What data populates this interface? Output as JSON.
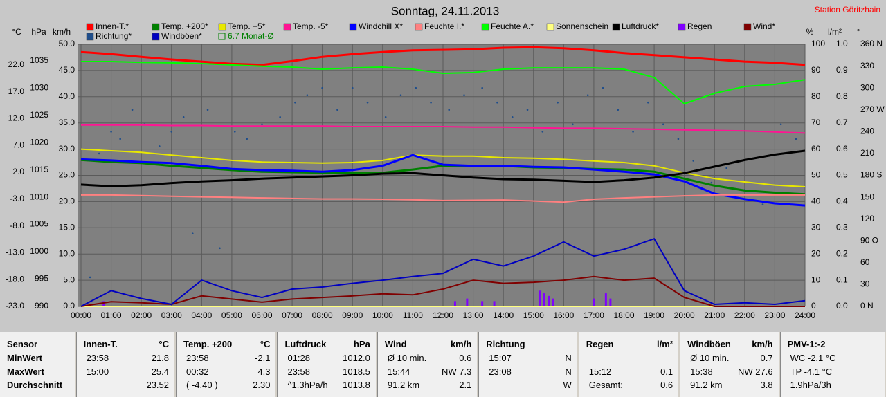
{
  "chart_data": {
    "type": "line",
    "title": "Sonntag, 24.11.2013",
    "station": "Station Göritzhain",
    "x": [
      0,
      1,
      2,
      3,
      4,
      5,
      6,
      7,
      8,
      9,
      10,
      11,
      12,
      13,
      14,
      15,
      16,
      17,
      18,
      19,
      20,
      21,
      22,
      23,
      24
    ],
    "xlim": [
      0,
      24
    ],
    "xticks": [
      {
        "value": 0,
        "label": "00:00"
      },
      {
        "value": 1,
        "label": "01:00"
      },
      {
        "value": 2,
        "label": "02:00"
      },
      {
        "value": 3,
        "label": "03:00"
      },
      {
        "value": 4,
        "label": "04:00"
      },
      {
        "value": 5,
        "label": "05:00"
      },
      {
        "value": 6,
        "label": "06:00"
      },
      {
        "value": 7,
        "label": "07:00"
      },
      {
        "value": 8,
        "label": "08:00"
      },
      {
        "value": 9,
        "label": "09:00"
      },
      {
        "value": 10,
        "label": "10:00"
      },
      {
        "value": 11,
        "label": "11:00"
      },
      {
        "value": 12,
        "label": "12:00"
      },
      {
        "value": 13,
        "label": "13:00"
      },
      {
        "value": 14,
        "label": "14:00"
      },
      {
        "value": 15,
        "label": "15:00"
      },
      {
        "value": 16,
        "label": "16:00"
      },
      {
        "value": 17,
        "label": "17:00"
      },
      {
        "value": 18,
        "label": "18:00"
      },
      {
        "value": 19,
        "label": "19:00"
      },
      {
        "value": 20,
        "label": "20:00"
      },
      {
        "value": 21,
        "label": "21:00"
      },
      {
        "value": 22,
        "label": "22:00"
      },
      {
        "value": 23,
        "label": "23:00"
      },
      {
        "value": 24,
        "label": "24:00"
      }
    ],
    "grid": true,
    "axes": [
      {
        "label": "°C",
        "side": "left",
        "lim": [
          -23,
          25.84
        ],
        "ticks": [
          {
            "value": 22,
            "label": "22.0"
          },
          {
            "value": 17,
            "label": "17.0"
          },
          {
            "value": 12,
            "label": "12.0"
          },
          {
            "value": 7,
            "label": "7.0"
          },
          {
            "value": 2,
            "label": "2.0"
          },
          {
            "value": -3,
            "label": "-3.0"
          },
          {
            "value": -8,
            "label": "-8.0"
          },
          {
            "value": -13,
            "label": "-13.0"
          },
          {
            "value": -18,
            "label": "-18.0"
          },
          {
            "value": -23,
            "label": "-23.0"
          }
        ]
      },
      {
        "label": "hPa",
        "side": "left",
        "lim": [
          990,
          1038
        ],
        "ticks": [
          1035,
          1030,
          1025,
          1020,
          1015,
          1010,
          1005,
          1000,
          995,
          990
        ]
      },
      {
        "label": "km/h",
        "side": "left",
        "lim": [
          0,
          50
        ],
        "ticks": [
          {
            "value": 50,
            "label": "50.0"
          },
          {
            "value": 45,
            "label": "45.0"
          },
          {
            "value": 40,
            "label": "40.0"
          },
          {
            "value": 35,
            "label": "35.0"
          },
          {
            "value": 30,
            "label": "30.0"
          },
          {
            "value": 25,
            "label": "25.0"
          },
          {
            "value": 20,
            "label": "20.0"
          },
          {
            "value": 15,
            "label": "15.0"
          },
          {
            "value": 10,
            "label": "10.0"
          },
          {
            "value": 5,
            "label": "5.0"
          },
          {
            "value": 0,
            "label": "0.0"
          }
        ]
      },
      {
        "label": "%",
        "side": "right",
        "lim": [
          0,
          100
        ],
        "ticks": [
          100,
          90,
          80,
          70,
          60,
          50,
          40,
          30,
          20,
          10,
          0
        ]
      },
      {
        "label": "l/m²",
        "side": "right",
        "lim": [
          0,
          1
        ],
        "ticks": [
          {
            "value": 1,
            "label": "1.0"
          },
          {
            "value": 0.9,
            "label": "0.9"
          },
          {
            "value": 0.8,
            "label": "0.8"
          },
          {
            "value": 0.7,
            "label": "0.7"
          },
          {
            "value": 0.6,
            "label": "0.6"
          },
          {
            "value": 0.5,
            "label": "0.5"
          },
          {
            "value": 0.4,
            "label": "0.4"
          },
          {
            "value": 0.3,
            "label": "0.3"
          },
          {
            "value": 0.2,
            "label": "0.2"
          },
          {
            "value": 0.1,
            "label": "0.1"
          },
          {
            "value": 0,
            "label": "0.0"
          }
        ]
      },
      {
        "label": "°",
        "side": "right",
        "lim": [
          0,
          360
        ],
        "ticks": [
          {
            "value": 360,
            "label": "360 N"
          },
          330,
          300,
          {
            "value": 270,
            "label": "270 W"
          },
          240,
          210,
          {
            "value": 180,
            "label": "180 S"
          },
          150,
          120,
          {
            "value": 90,
            "label": "90 O"
          },
          60,
          30,
          {
            "value": 0,
            "label": "0 N"
          }
        ]
      }
    ],
    "reference_line": {
      "label": "6.7 Monat-Ø",
      "value": 6.7,
      "axis": 0,
      "color": "#008000"
    },
    "series": [
      {
        "name": "Innen-T.*",
        "type": "line",
        "axis": 0,
        "color": "#ff0000",
        "width": 3,
        "values": [
          24.4,
          24.0,
          23.5,
          23.0,
          22.6,
          22.2,
          22.0,
          22.7,
          23.5,
          24.0,
          24.4,
          24.7,
          24.8,
          24.9,
          25.2,
          25.3,
          25.1,
          24.7,
          24.2,
          23.8,
          23.4,
          23.0,
          22.6,
          22.4,
          22.0
        ]
      },
      {
        "name": "Temp. +200*",
        "type": "line",
        "axis": 0,
        "color": "#008000",
        "width": 3,
        "values": [
          4.3,
          3.9,
          3.7,
          3.2,
          2.8,
          2.4,
          2.1,
          2.0,
          1.9,
          1.9,
          1.9,
          2.5,
          3.2,
          3.2,
          3.2,
          2.9,
          2.8,
          2.6,
          2.5,
          2.1,
          0.8,
          -0.5,
          -1.4,
          -1.8,
          -2.1
        ]
      },
      {
        "name": "Temp. +5*",
        "type": "line",
        "axis": 0,
        "color": "#e8e800",
        "width": 2,
        "values": [
          6.3,
          6.0,
          5.7,
          5.2,
          4.7,
          4.2,
          3.9,
          3.8,
          3.7,
          3.8,
          4.2,
          5.2,
          5.0,
          5.0,
          4.7,
          4.6,
          4.4,
          4.1,
          3.8,
          3.2,
          1.9,
          0.8,
          0.2,
          -0.4,
          -0.7
        ]
      },
      {
        "name": "Temp. -5*",
        "type": "line",
        "axis": 0,
        "color": "#ff1493",
        "width": 2,
        "values": [
          10.8,
          10.8,
          10.8,
          10.7,
          10.7,
          10.6,
          10.6,
          10.6,
          10.6,
          10.5,
          10.5,
          10.5,
          10.5,
          10.4,
          10.4,
          10.3,
          10.2,
          10.2,
          10.1,
          10.0,
          9.9,
          9.8,
          9.7,
          9.5,
          9.3
        ]
      },
      {
        "name": "Windchill X*",
        "type": "line",
        "axis": 0,
        "color": "#0000ff",
        "width": 3,
        "values": [
          4.4,
          4.2,
          3.9,
          3.7,
          3.2,
          2.6,
          2.4,
          2.3,
          2.1,
          2.4,
          3.2,
          5.2,
          3.4,
          3.2,
          3.2,
          3.0,
          2.9,
          2.5,
          2.1,
          1.6,
          0.3,
          -2.0,
          -3.0,
          -3.8,
          -4.2
        ]
      },
      {
        "name": "Feuchte I.*",
        "type": "line",
        "axis": 3,
        "color": "#ff8080",
        "width": 2,
        "values": [
          42.5,
          42.5,
          42.3,
          42.0,
          41.8,
          41.6,
          41.4,
          41.2,
          41.0,
          41.0,
          40.9,
          40.7,
          40.4,
          40.5,
          40.6,
          40.2,
          39.8,
          40.9,
          41.4,
          41.8,
          42.2,
          42.5,
          42.5,
          42.5,
          42.5
        ]
      },
      {
        "name": "Feuchte A.*",
        "type": "line",
        "axis": 3,
        "color": "#00ff00",
        "width": 2,
        "values": [
          93.4,
          93.4,
          93.1,
          92.9,
          92.6,
          92.1,
          91.6,
          91.3,
          90.5,
          91.0,
          91.3,
          90.5,
          88.9,
          89.2,
          90.5,
          91.0,
          91.0,
          91.0,
          90.5,
          87.3,
          77.3,
          81.3,
          83.9,
          84.7,
          86.5
        ]
      },
      {
        "name": "Sonnenschein",
        "type": "line",
        "axis": 2,
        "color": "#ffff80",
        "width": 2,
        "values": [
          0,
          0,
          0,
          0,
          0,
          0,
          0,
          0,
          0,
          0,
          0,
          0,
          0,
          0,
          0,
          0,
          0,
          0,
          0,
          0,
          0,
          0,
          0,
          0,
          0
        ]
      },
      {
        "name": "Luftdruck*",
        "type": "line",
        "axis": 1,
        "color": "#000000",
        "width": 3,
        "values": [
          1012.3,
          1012.0,
          1012.2,
          1012.6,
          1012.9,
          1013.1,
          1013.4,
          1013.6,
          1013.8,
          1014.0,
          1014.3,
          1014.4,
          1014.0,
          1013.6,
          1013.3,
          1013.2,
          1013.0,
          1012.8,
          1013.1,
          1013.6,
          1014.4,
          1015.6,
          1016.8,
          1017.8,
          1018.5
        ]
      },
      {
        "name": "Regen",
        "type": "bar",
        "axis": 4,
        "color": "#8000ff",
        "x": [
          0.75,
          12.4,
          12.8,
          13.3,
          13.7,
          15.2,
          15.35,
          15.5,
          15.65,
          17.0,
          17.4,
          17.55
        ],
        "values": [
          0.02,
          0.02,
          0.03,
          0.02,
          0.02,
          0.06,
          0.05,
          0.04,
          0.03,
          0.03,
          0.05,
          0.03
        ]
      },
      {
        "name": "Wind*",
        "type": "line",
        "axis": 2,
        "color": "#800000",
        "width": 2,
        "values": [
          0,
          0.9,
          0.7,
          0.4,
          2.0,
          1.4,
          0.8,
          1.4,
          1.7,
          2.0,
          2.4,
          2.2,
          3.3,
          5.0,
          4.4,
          4.6,
          5.0,
          5.7,
          5.0,
          5.4,
          1.7,
          0,
          0,
          0,
          0
        ]
      },
      {
        "name": "Richtung*",
        "type": "scatter",
        "axis": 5,
        "color": "#1f4e8c",
        "x": [
          0.3,
          0.6,
          1.0,
          1.3,
          1.7,
          2.1,
          2.6,
          3.0,
          3.4,
          3.7,
          4.2,
          4.6,
          5.1,
          5.5,
          6.0,
          6.6,
          7.1,
          7.5,
          8.0,
          8.5,
          9.0,
          9.5,
          10.1,
          10.6,
          11.1,
          11.6,
          12.2,
          12.7,
          13.3,
          13.8,
          14.3,
          14.8,
          15.3,
          15.8,
          16.3,
          16.8,
          17.3,
          17.8,
          18.3,
          18.8,
          19.3,
          19.8,
          20.3,
          20.9,
          21.4,
          22.0,
          22.6,
          23.2,
          23.7
        ],
        "values": [
          40,
          210,
          240,
          230,
          270,
          250,
          220,
          240,
          260,
          100,
          270,
          80,
          240,
          230,
          250,
          260,
          280,
          290,
          300,
          270,
          300,
          280,
          260,
          290,
          300,
          280,
          270,
          290,
          300,
          280,
          260,
          270,
          240,
          280,
          250,
          290,
          300,
          270,
          240,
          280,
          250,
          230,
          200,
          170,
          190,
          160,
          140,
          250,
          230
        ]
      },
      {
        "name": "Windböen*",
        "type": "line",
        "axis": 2,
        "color": "#0000c0",
        "width": 2,
        "values": [
          0,
          3.0,
          1.5,
          0.4,
          5.0,
          3.0,
          1.7,
          3.3,
          3.7,
          4.4,
          5.0,
          5.7,
          6.3,
          9.0,
          7.7,
          9.6,
          12.3,
          9.6,
          10.9,
          12.9,
          3.0,
          0.4,
          0.7,
          0.4,
          1.1
        ]
      }
    ]
  },
  "table": {
    "columns": [
      {
        "header": "Sensor",
        "rows": [
          [
            "MinWert",
            null
          ],
          [
            "MaxWert",
            null
          ],
          [
            "Durchschnitt",
            null
          ]
        ]
      },
      {
        "header": "Innen-T.",
        "unit": "°C",
        "rows": [
          [
            "23:58",
            "21.8"
          ],
          [
            "15:00",
            "25.4"
          ],
          [
            null,
            "23.52"
          ]
        ]
      },
      {
        "header": "Temp. +200",
        "unit": "°C",
        "rows": [
          [
            "23:58",
            "-2.1"
          ],
          [
            "00:32",
            "4.3"
          ],
          [
            "( -4.40 )",
            "2.30"
          ]
        ]
      },
      {
        "header": "Luftdruck",
        "unit": "hPa",
        "rows": [
          [
            "01:28",
            "1012.0"
          ],
          [
            "23:58",
            "1018.5"
          ],
          [
            "^1.3hPa/h",
            "1013.8"
          ]
        ]
      },
      {
        "header": "Wind",
        "unit": "km/h",
        "rows": [
          [
            "Ø 10 min.",
            "0.6"
          ],
          [
            "15:44",
            "NW 7.3"
          ],
          [
            "91.2 km",
            "2.1"
          ]
        ]
      },
      {
        "header": "Richtung",
        "rows": [
          [
            "15:07",
            "N"
          ],
          [
            "23:08",
            "N"
          ],
          [
            null,
            "W"
          ]
        ]
      },
      {
        "header": "Regen",
        "unit": "l/m²",
        "rows": [
          [
            null,
            null
          ],
          [
            "15:12",
            "0.1"
          ],
          [
            "Gesamt:",
            "0.6"
          ]
        ]
      },
      {
        "header": "Windböen",
        "unit": "km/h",
        "rows": [
          [
            "Ø 10 min.",
            "0.7"
          ],
          [
            "15:38",
            "NW 27.6"
          ],
          [
            "91.2 km",
            "3.8"
          ]
        ]
      },
      {
        "header": "PMV-1:-2",
        "rows": [
          [
            "WC -2.1 °C",
            null
          ],
          [
            "TP -4.1 °C",
            null
          ],
          [
            "1.9hPa/3h",
            null
          ]
        ]
      }
    ]
  }
}
